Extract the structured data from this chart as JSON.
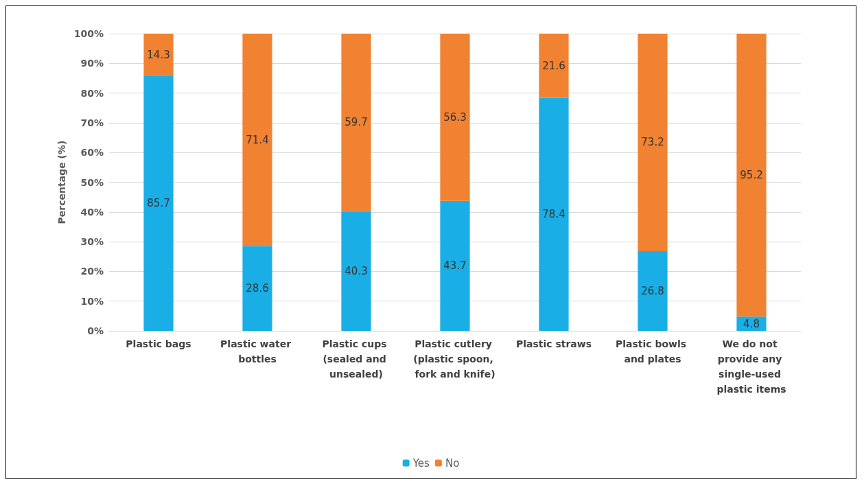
{
  "chart_data": {
    "type": "bar",
    "stacked": true,
    "ylabel": "Percentage (%)",
    "categories": [
      "Plastic bags",
      "Plastic water bottles",
      "Plastic cups (sealed and unsealed)",
      "Plastic cutlery (plastic spoon, fork and knife)",
      "Plastic straws",
      "Plastic bowls and plates",
      "We do not provide any single-used plastic items"
    ],
    "series": [
      {
        "name": "Yes",
        "color": "#1aaee6",
        "values": [
          85.7,
          28.6,
          40.3,
          43.7,
          78.4,
          26.8,
          4.8
        ]
      },
      {
        "name": "No",
        "color": "#f08232",
        "values": [
          14.3,
          71.4,
          59.7,
          56.3,
          21.6,
          73.2,
          95.2
        ]
      }
    ],
    "ylim": [
      0,
      100
    ],
    "yticks": [
      {
        "value": 0,
        "label": "0%"
      },
      {
        "value": 10,
        "label": "10%"
      },
      {
        "value": 20,
        "label": "20%"
      },
      {
        "value": 30,
        "label": "30%"
      },
      {
        "value": 40,
        "label": "40%"
      },
      {
        "value": 50,
        "label": "50%"
      },
      {
        "value": 60,
        "label": "60%"
      },
      {
        "value": 70,
        "label": "70%"
      },
      {
        "value": 80,
        "label": "80%"
      },
      {
        "value": 90,
        "label": "90%"
      },
      {
        "value": 100,
        "label": "100%"
      }
    ],
    "grid": "y",
    "legend": "bottom",
    "data_labels": true
  }
}
